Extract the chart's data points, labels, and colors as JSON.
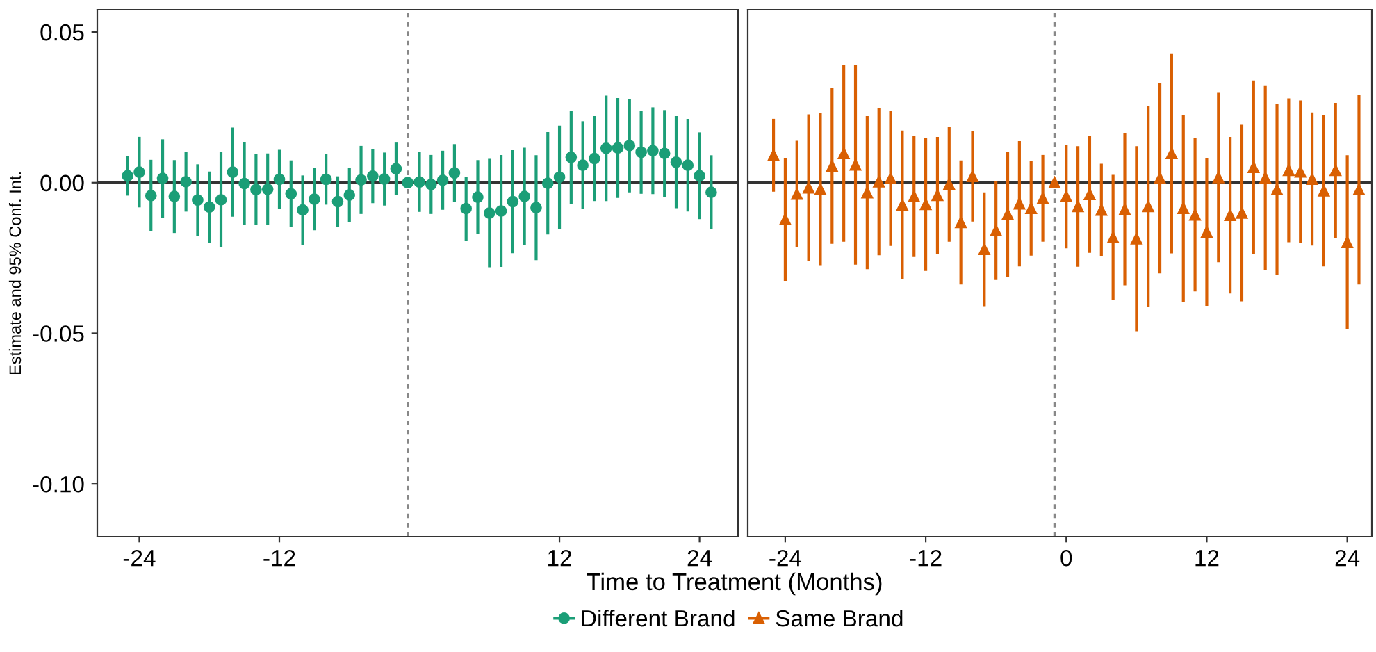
{
  "chart_data": [
    {
      "type": "scatter",
      "ylabel": "Estimate and 95% Conf. Int.",
      "xlabel": "Time to Treatment (Months)",
      "legend": "bottom",
      "marker": "circle",
      "grid": false,
      "x": [
        -25,
        -24,
        -23,
        -22,
        -21,
        -20,
        -19,
        -18,
        -17,
        -16,
        -15,
        -14,
        -13,
        -12,
        -11,
        -10,
        -9,
        -8,
        -7,
        -6,
        -5,
        -4,
        -3,
        -2,
        -1,
        0,
        1,
        2,
        3,
        4,
        5,
        6,
        7,
        8,
        9,
        10,
        11,
        12,
        13,
        14,
        15,
        16,
        17,
        18,
        19,
        20,
        21,
        22,
        23,
        24,
        25
      ],
      "xlim": [
        -27.6,
        27.3
      ],
      "xticks": [
        -24,
        -12,
        12,
        24
      ],
      "ylim": [
        -0.1175,
        0.0574
      ],
      "yticks": [
        {
          "value": 0.05,
          "label": "0.05"
        },
        {
          "value": 0,
          "label": "0.00"
        },
        {
          "value": -0.05,
          "label": "-0.05"
        },
        {
          "value": -0.1,
          "label": "-0.10"
        }
      ],
      "ref_lines": [
        {
          "axis": "y",
          "value": 0,
          "color": "#333333",
          "line_style": "solid"
        },
        {
          "axis": "x",
          "value": -1,
          "color": "#888888",
          "line_style": "dotted"
        }
      ],
      "series": [
        {
          "name": "Different Brand",
          "color": "#1b9e77",
          "values": [
            0.0023,
            0.0035,
            -0.0043,
            0.0014,
            -0.0046,
            0.0003,
            -0.0058,
            -0.0081,
            -0.0057,
            0.0035,
            -0.0003,
            -0.0023,
            -0.0022,
            0.0011,
            -0.0037,
            -0.0091,
            -0.0055,
            0.0011,
            -0.0063,
            -0.0041,
            0.0009,
            0.0022,
            0.0012,
            0.0046,
            0,
            0.0002,
            -0.0006,
            0.0008,
            0.0032,
            -0.0086,
            -0.0048,
            -0.0101,
            -0.0094,
            -0.0063,
            -0.0046,
            -0.0083,
            -0.0002,
            0.0018,
            0.0084,
            0.0058,
            0.008,
            0.0114,
            0.0115,
            0.0123,
            0.0101,
            0.0106,
            0.0097,
            0.0068,
            0.0058,
            0.0023,
            -0.0032
          ],
          "errors": [
            0.0066,
            0.0117,
            0.0119,
            0.013,
            0.0121,
            0.0099,
            0.0119,
            0.0118,
            0.0158,
            0.0148,
            0.0137,
            0.0118,
            0.0119,
            0.0098,
            0.0111,
            0.0115,
            0.0103,
            0.0084,
            0.0084,
            0.0089,
            0.0113,
            0.009,
            0.0088,
            0.0087,
            null,
            0.0099,
            0.0098,
            0.0098,
            0.0096,
            0.0106,
            0.0123,
            0.018,
            0.0186,
            0.0171,
            0.0162,
            0.0174,
            0.017,
            0.0171,
            0.0155,
            0.0146,
            0.0141,
            0.0175,
            0.0166,
            0.0155,
            0.0138,
            0.0144,
            0.0144,
            0.0153,
            0.0154,
            0.0144,
            0.0123
          ]
        }
      ]
    },
    {
      "type": "scatter",
      "legend": "bottom",
      "marker": "triangle",
      "grid": false,
      "tick_labels": "x",
      "x": [
        -25,
        -24,
        -23,
        -22,
        -21,
        -20,
        -19,
        -18,
        -17,
        -16,
        -15,
        -14,
        -13,
        -12,
        -11,
        -10,
        -9,
        -8,
        -7,
        -6,
        -5,
        -4,
        -3,
        -2,
        -1,
        0,
        1,
        2,
        3,
        4,
        5,
        6,
        7,
        8,
        9,
        10,
        11,
        12,
        13,
        14,
        15,
        16,
        17,
        18,
        19,
        20,
        21,
        22,
        23,
        24,
        25
      ],
      "xlim": [
        -27.2,
        26.1
      ],
      "xticks": [
        -24,
        -12,
        0,
        12,
        24
      ],
      "ylim": [
        -0.1175,
        0.0574
      ],
      "ref_lines": [
        {
          "axis": "y",
          "value": 0,
          "color": "#333333",
          "line_style": "solid"
        },
        {
          "axis": "x",
          "value": -1,
          "color": "#888888",
          "line_style": "dotted"
        }
      ],
      "series": [
        {
          "name": "Same Brand",
          "color": "#d95f02",
          "values": [
            0.0091,
            -0.0122,
            -0.0038,
            -0.0017,
            -0.0022,
            0.0055,
            0.0097,
            0.0059,
            -0.0033,
            0.0003,
            0.0014,
            -0.0074,
            -0.0046,
            -0.0072,
            -0.0042,
            -0.0005,
            -0.0132,
            0.0021,
            -0.0221,
            -0.0159,
            -0.0105,
            -0.007,
            -0.0085,
            -0.0052,
            0,
            -0.0046,
            -0.0079,
            -0.0039,
            -0.0091,
            -0.0182,
            -0.0089,
            -0.0186,
            -0.0079,
            0.0015,
            0.0097,
            -0.0085,
            -0.0107,
            -0.0164,
            0.0017,
            -0.0108,
            -0.0101,
            0.0051,
            0.0016,
            -0.0023,
            0.0041,
            0.0036,
            0.0012,
            -0.0027,
            0.0041,
            -0.0198,
            -0.0023
          ],
          "errors": [
            0.0121,
            0.0204,
            0.0177,
            0.0244,
            0.0252,
            0.0258,
            0.0293,
            0.0331,
            0.0254,
            0.0244,
            0.0224,
            0.0247,
            0.0201,
            0.0221,
            0.0194,
            0.0191,
            0.0206,
            0.015,
            0.0189,
            0.0164,
            0.0207,
            0.0208,
            0.0157,
            0.0144,
            null,
            0.0172,
            0.02,
            0.0194,
            0.0154,
            0.0208,
            0.0252,
            0.0307,
            0.0333,
            0.0316,
            0.0332,
            0.031,
            0.0254,
            0.0245,
            0.0281,
            0.026,
            0.0293,
            0.0288,
            0.0305,
            0.0284,
            0.0239,
            0.0237,
            0.0221,
            0.0251,
            0.0224,
            0.0289,
            0.0315
          ]
        }
      ]
    }
  ]
}
